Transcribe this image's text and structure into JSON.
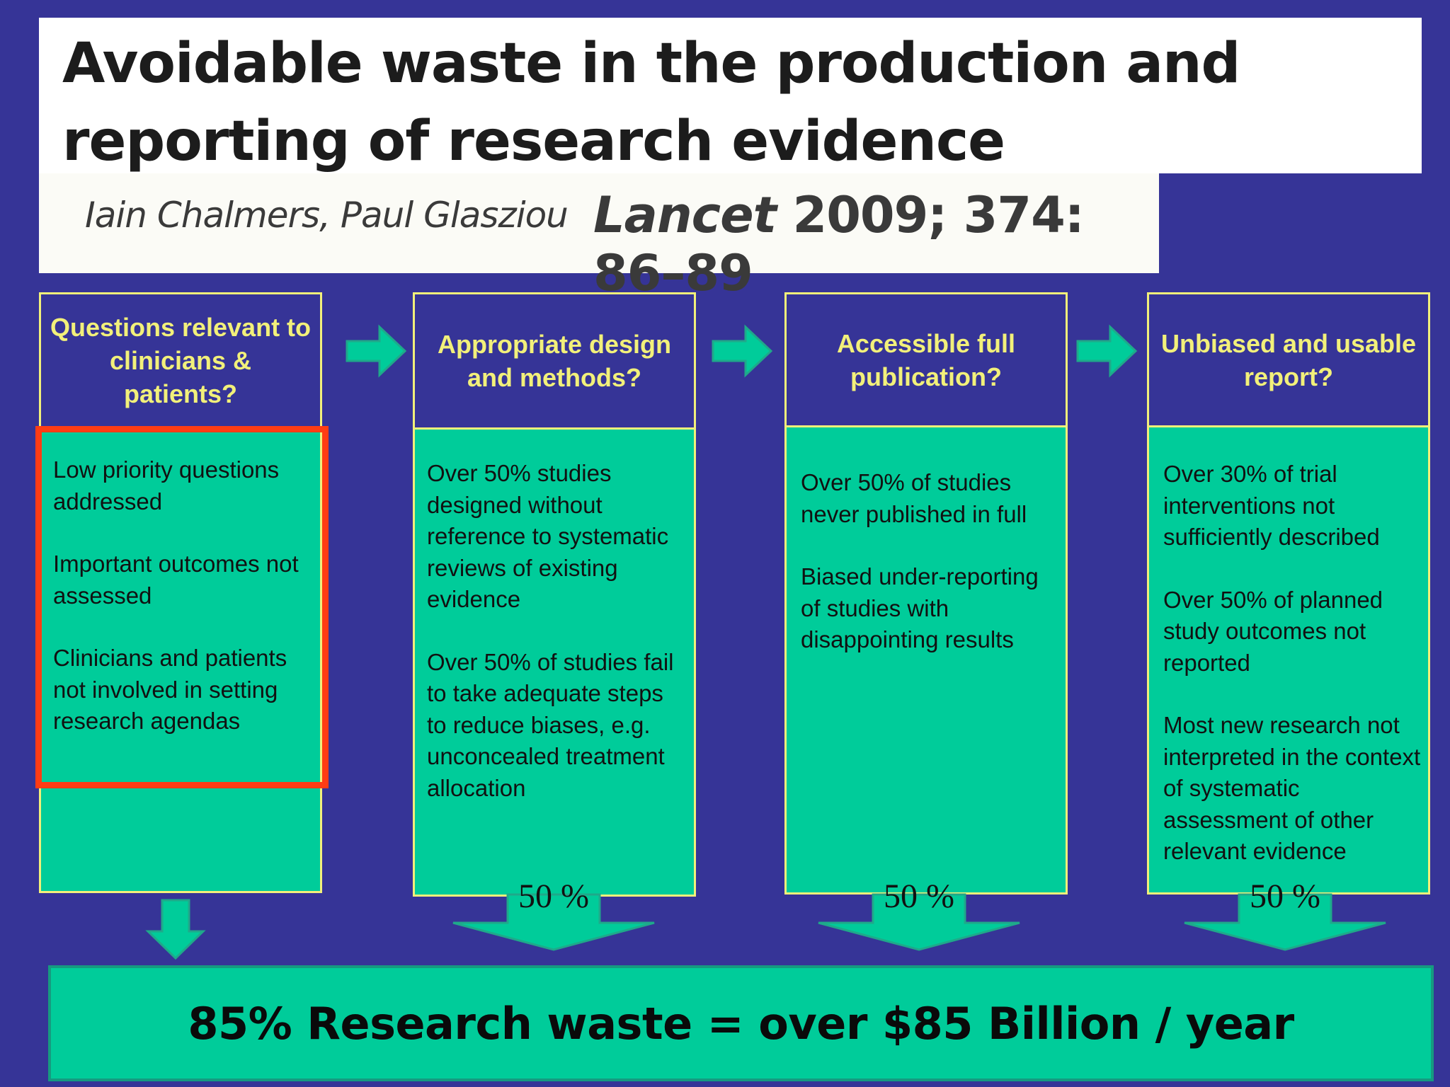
{
  "header": {
    "title": "Avoidable waste in the production and reporting of research evidence",
    "authors": "Iain Chalmers, Paul Glasziou",
    "journal": "Lancet",
    "journal_ref": "2009; 374: 86–89"
  },
  "columns": [
    {
      "heading": "Questions relevant to clinicians & patients?",
      "items": [
        "Low priority questions addressed",
        "Important outcomes not assessed",
        "Clinicians and patients not involved in setting research agendas"
      ]
    },
    {
      "heading": "Appropriate design and methods?",
      "items": [
        "Over 50% studies designed without reference to systematic reviews of existing evidence",
        "Over 50% of studies fail to take adequate steps to reduce biases, e.g. unconcealed treatment allocation"
      ],
      "waste_pct": "50 %"
    },
    {
      "heading": "Accessible full publication?",
      "items": [
        "Over 50% of studies never published in full",
        "Biased under-reporting of studies with disappointing results"
      ],
      "waste_pct": "50 %"
    },
    {
      "heading": "Unbiased and usable report?",
      "items": [
        "Over 30% of  trial interventions not sufficiently described",
        "Over 50% of  planned study outcomes not reported",
        "Most new research not interpreted in the context of systematic assessment of other relevant evidence"
      ],
      "waste_pct": "50 %"
    }
  ],
  "summary": "85% Research waste = over $85 Billion / year",
  "colors": {
    "background": "#363497",
    "box_fill": "#00cc9a",
    "heading_text": "#f2f07a",
    "highlight": "#ff3c14"
  }
}
